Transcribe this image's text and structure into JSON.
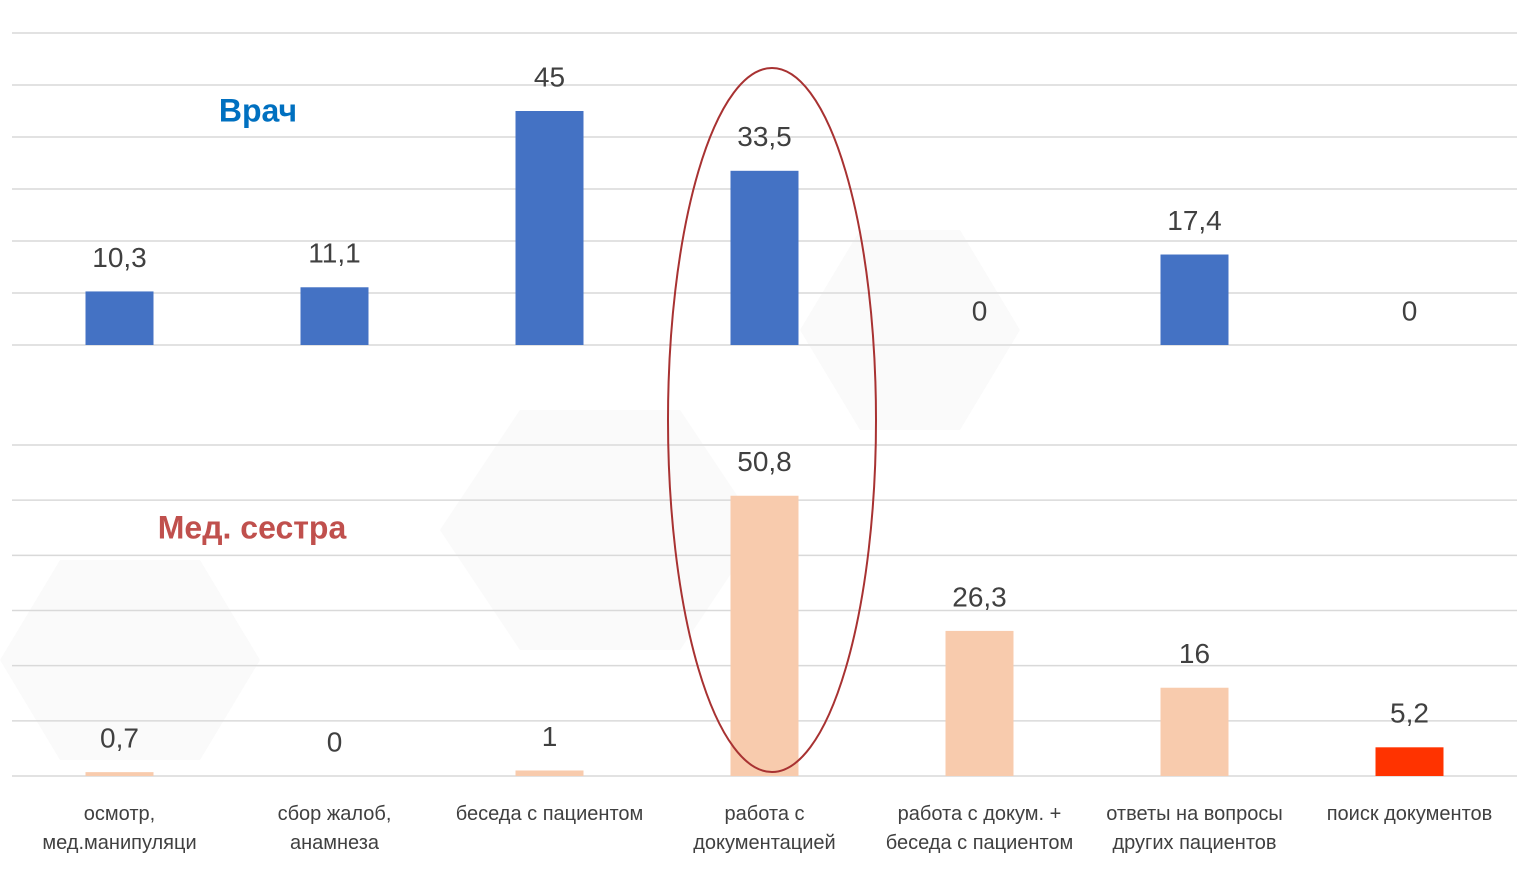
{
  "chart_data": [
    {
      "type": "bar",
      "title": "Врач",
      "values": [
        10.3,
        11.1,
        45,
        33.5,
        0,
        17.4,
        0
      ],
      "value_labels": [
        "10,3",
        "11,1",
        "45",
        "33,5",
        "0",
        "17,4",
        "0"
      ],
      "color": "#4472c4",
      "ylim": [
        0,
        60
      ],
      "yticks": [
        0,
        10,
        20,
        30,
        40,
        50,
        60
      ],
      "grid": true
    },
    {
      "type": "bar",
      "title": "Мед. сестра",
      "categories": [
        "осмотр, мед.манипуляци",
        "сбор жалоб, анамнеза",
        "беседа с пациентом",
        "работа с документацией",
        "работа с докум. + беседа с пациентом",
        "ответы на вопросы других пациентов",
        "поиск документов"
      ],
      "values": [
        0.7,
        0,
        1,
        50.8,
        26.3,
        16,
        5.2
      ],
      "value_labels": [
        "0,7",
        "0",
        "1",
        "50,8",
        "26,3",
        "16",
        "5,2"
      ],
      "colors": [
        "#f8cbad",
        "#f8cbad",
        "#f8cbad",
        "#f8cbad",
        "#f8cbad",
        "#f8cbad",
        "#ff3300"
      ],
      "ylim": [
        0,
        60
      ],
      "yticks": [
        0,
        10,
        20,
        30,
        40,
        50,
        60
      ],
      "grid": true
    }
  ]
}
